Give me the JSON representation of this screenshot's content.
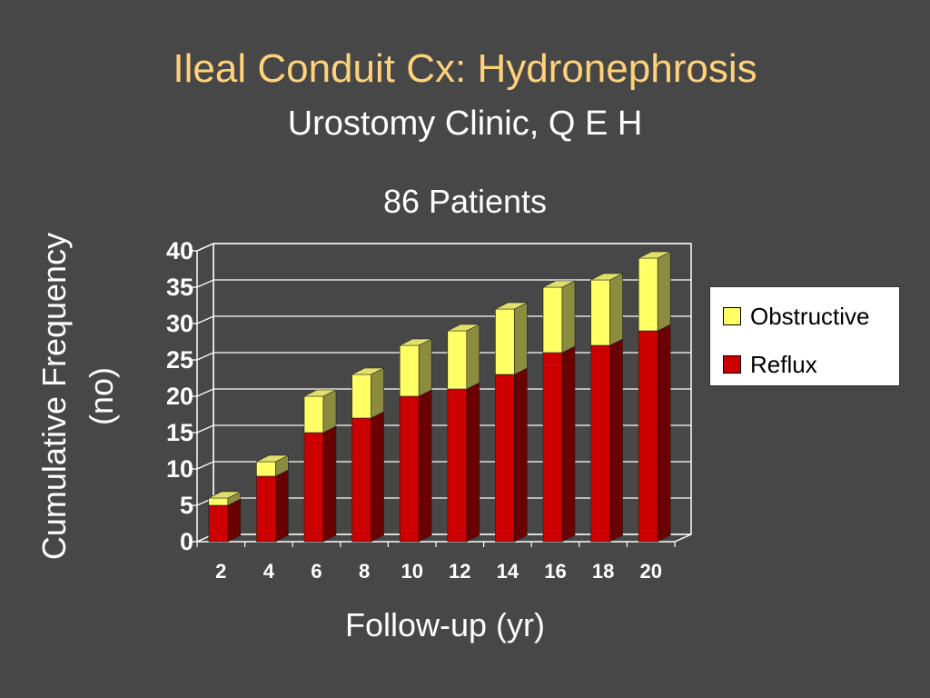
{
  "slide": {
    "title": "Ileal Conduit Cx: Hydronephrosis",
    "subtitle": "Urostomy Clinic, Q E H"
  },
  "colors": {
    "background": "#474747",
    "title": "#ffd27a",
    "reflux_front": "#cc0000",
    "reflux_side": "#6b0000",
    "reflux_top": "#990000",
    "obstructive_front": "#ffff66",
    "obstructive_side": "#8c8c3f",
    "obstructive_top": "#e0e06a"
  },
  "chart_data": {
    "type": "bar",
    "stacked": true,
    "three_d": true,
    "title": "86 Patients",
    "xlabel": "Follow-up (yr)",
    "ylabel": "Cumulative Frequency (no)",
    "categories": [
      "2",
      "4",
      "6",
      "8",
      "10",
      "12",
      "14",
      "16",
      "18",
      "20"
    ],
    "series": [
      {
        "name": "Reflux",
        "values": [
          5,
          9,
          15,
          17,
          20,
          21,
          23,
          26,
          27,
          29
        ]
      },
      {
        "name": "Obstructive",
        "values": [
          1,
          2,
          5,
          6,
          7,
          8,
          9,
          9,
          9,
          10
        ]
      }
    ],
    "ylim": [
      0,
      40
    ],
    "yticks": [
      0,
      5,
      10,
      15,
      20,
      25,
      30,
      35,
      40
    ],
    "grid": true,
    "legend_position": "right"
  }
}
